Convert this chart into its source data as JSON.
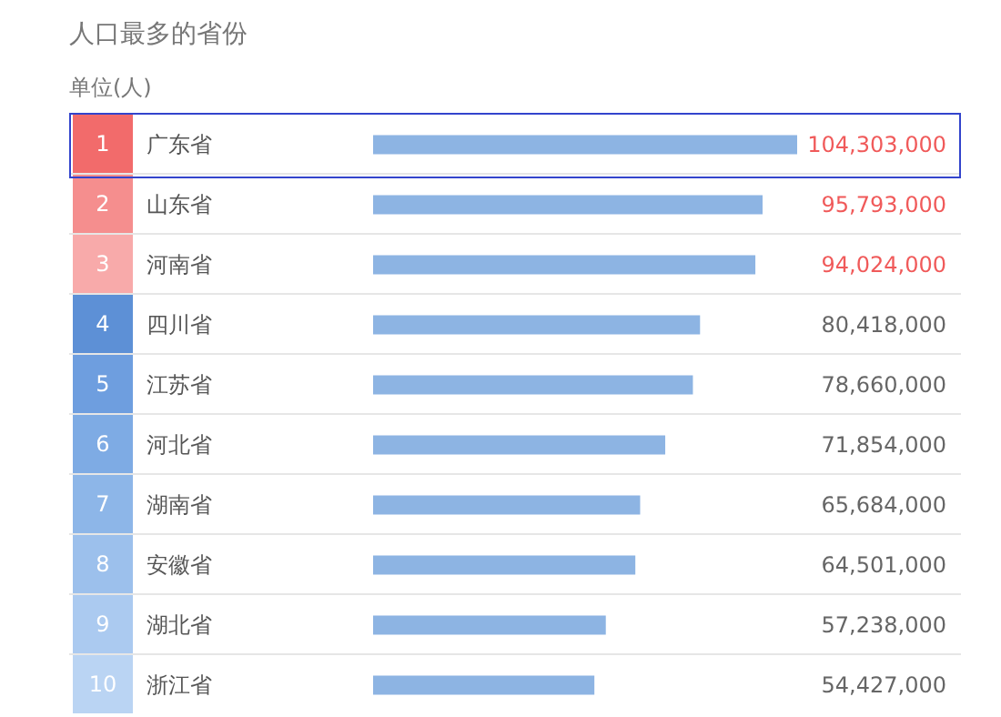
{
  "chart_data": {
    "type": "bar",
    "orientation": "horizontal",
    "title": "人口最多的省份",
    "subtitle": "单位(人)",
    "categories": [
      "广东省",
      "山东省",
      "河南省",
      "四川省",
      "江苏省",
      "河北省",
      "湖南省",
      "安徽省",
      "湖北省",
      "浙江省"
    ],
    "values": [
      104303000,
      95793000,
      94024000,
      80418000,
      78660000,
      71854000,
      65684000,
      64501000,
      57238000,
      54427000
    ],
    "value_labels": [
      "104,303,000",
      "95,793,000",
      "94,024,000",
      "80,418,000",
      "78,660,000",
      "71,854,000",
      "65,684,000",
      "64,501,000",
      "57,238,000",
      "54,427,000"
    ],
    "color": "#8db4e3",
    "annotations": [
      "1",
      "2",
      "3",
      "4",
      "5",
      "6",
      "7",
      "8",
      "9",
      "10"
    ]
  }
}
